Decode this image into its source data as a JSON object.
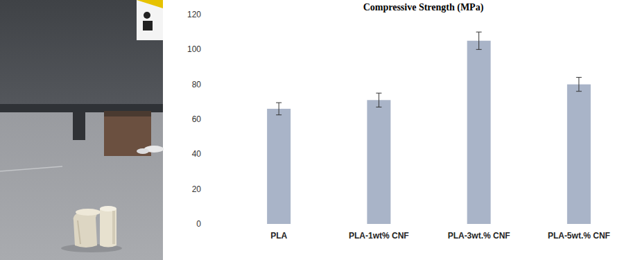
{
  "chart_data": {
    "type": "bar",
    "title": "Compressive Strength (MPa)",
    "categories": [
      "PLA",
      "PLA-1wt% CNF",
      "PLA-3wt.% CNF",
      "PLA-5wt.% CNF"
    ],
    "values": [
      66,
      71,
      105,
      80
    ],
    "errors": [
      3.5,
      4,
      5,
      4
    ],
    "color": "#a9b4c8",
    "ylim": [
      0,
      120
    ],
    "yticks": [
      0,
      20,
      40,
      60,
      80,
      100,
      120
    ],
    "grid": false
  }
}
